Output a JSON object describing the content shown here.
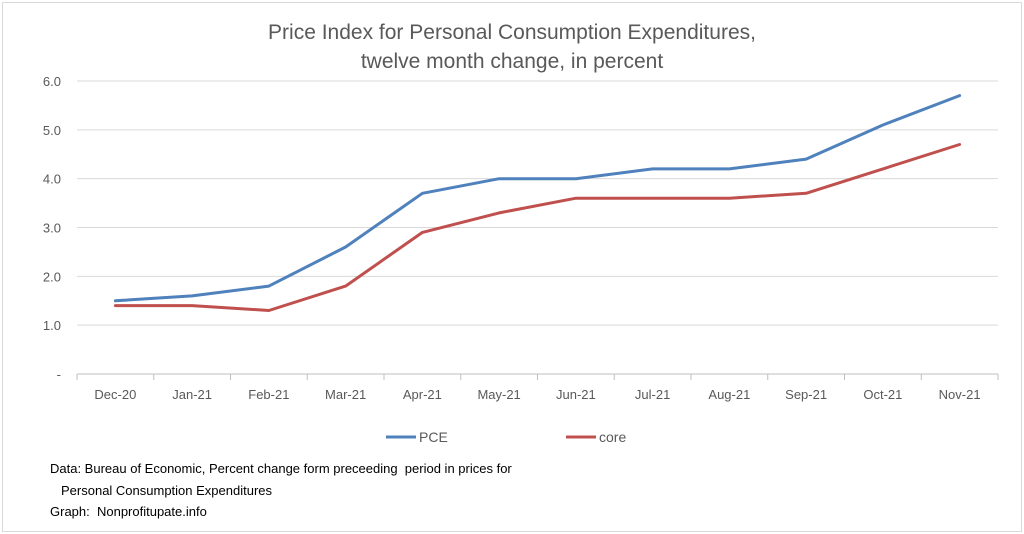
{
  "chart_data": {
    "type": "line",
    "title": [
      "Price Index for Personal Consumption Expenditures,",
      "twelve month change, in percent"
    ],
    "xlabel": "",
    "ylabel": "",
    "categories": [
      "Dec-20",
      "Jan-21",
      "Feb-21",
      "Mar-21",
      "Apr-21",
      "May-21",
      "Jun-21",
      "Jul-21",
      "Aug-21",
      "Sep-21",
      "Oct-21",
      "Nov-21"
    ],
    "y_ticks": [
      "-",
      "1.0",
      "2.0",
      "3.0",
      "4.0",
      "5.0",
      "6.0"
    ],
    "ylim": [
      0,
      6
    ],
    "grid": true,
    "legend_position": "bottom",
    "series": [
      {
        "name": "PCE",
        "color": "#4f81bd",
        "values": [
          1.5,
          1.6,
          1.8,
          2.6,
          3.7,
          4.0,
          4.0,
          4.2,
          4.2,
          4.4,
          5.1,
          5.7
        ]
      },
      {
        "name": "core",
        "color": "#c0504d",
        "values": [
          1.4,
          1.4,
          1.3,
          1.8,
          2.9,
          3.3,
          3.6,
          3.6,
          3.6,
          3.7,
          4.2,
          4.7
        ]
      }
    ]
  },
  "notes": {
    "line1": "Data: Bureau of Economic, Percent change form preceeding  period in prices for",
    "line2": "Personal Consumption Expenditures",
    "line3": "Graph:  Nonprofitupate.info"
  }
}
